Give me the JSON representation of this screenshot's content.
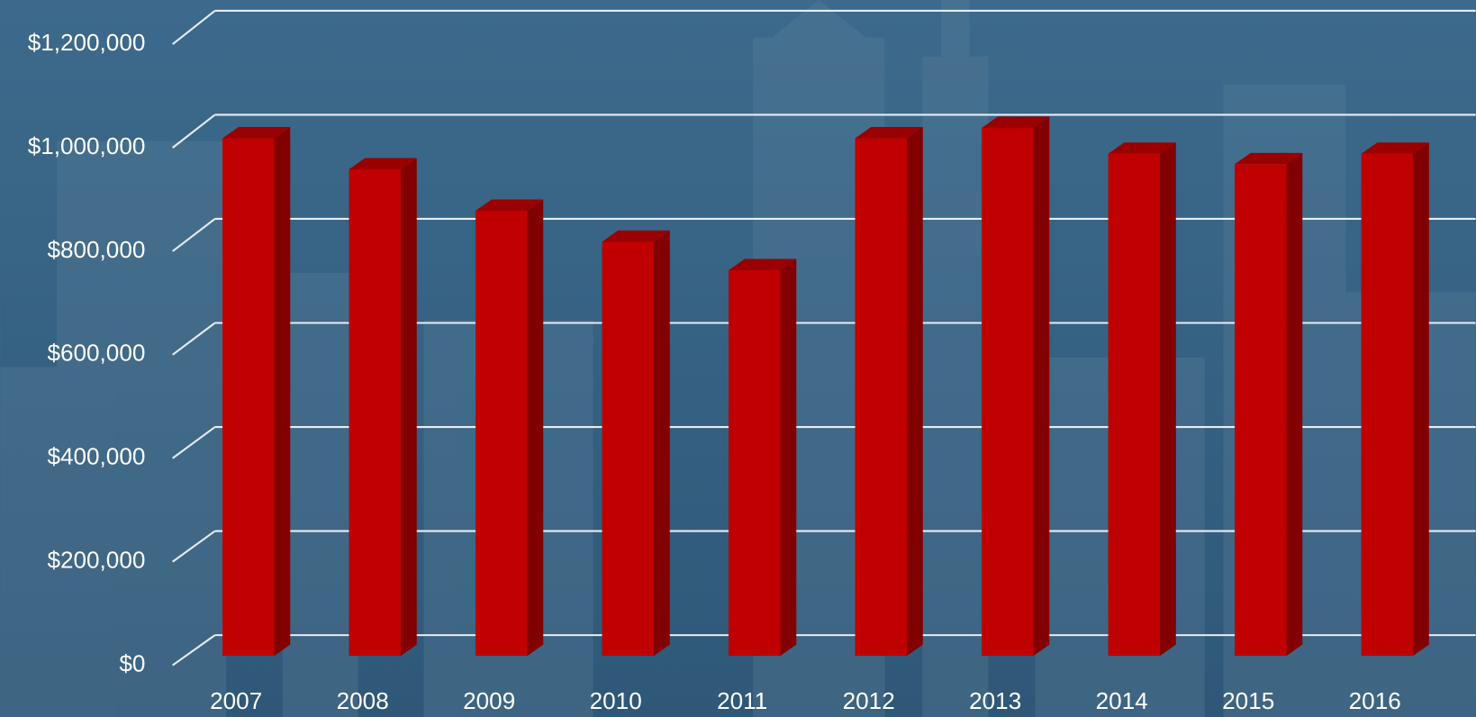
{
  "chart_data": {
    "type": "bar3d",
    "categories": [
      "2007",
      "2008",
      "2009",
      "2010",
      "2011",
      "2012",
      "2013",
      "2014",
      "2015",
      "2016"
    ],
    "values": [
      1000000,
      940000,
      860000,
      800000,
      745000,
      1000000,
      1020000,
      970000,
      950000,
      970000
    ],
    "color": "#c00000",
    "ylim": [
      0,
      1200000
    ],
    "yticks": [
      {
        "value": 0,
        "label": "$0"
      },
      {
        "value": 200000,
        "label": "$200,000"
      },
      {
        "value": 400000,
        "label": "$400,000"
      },
      {
        "value": 600000,
        "label": "$600,000"
      },
      {
        "value": 800000,
        "label": "$800,000"
      },
      {
        "value": 1000000,
        "label": "$1,000,000"
      },
      {
        "value": 1200000,
        "label": "$1,200,000"
      }
    ],
    "grid": true
  }
}
